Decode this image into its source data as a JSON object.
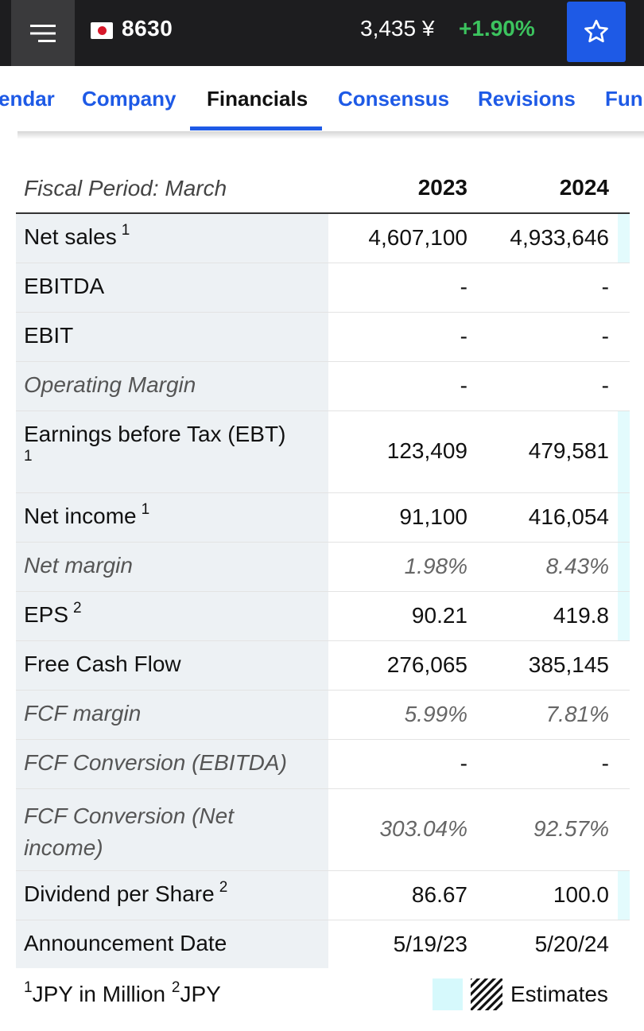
{
  "header": {
    "ticker": "8630",
    "price": "3,435 ¥",
    "change": "+1.90%",
    "colors": {
      "bar": "#1d1d1f",
      "positive": "#3cc35e",
      "accent": "#1e5ae6"
    }
  },
  "tabs": [
    {
      "label": "Calendar",
      "visible_label": "endar"
    },
    {
      "label": "Company"
    },
    {
      "label": "Financials",
      "active": true
    },
    {
      "label": "Consensus"
    },
    {
      "label": "Revisions"
    },
    {
      "label": "Fundamentals",
      "visible_label": "Fun"
    }
  ],
  "table": {
    "period_label": "Fiscal Period: March",
    "years": [
      "2023",
      "2024"
    ],
    "rows": [
      {
        "label": "Net sales",
        "note": "1",
        "v2023": "4,607,100",
        "v2024": "4,933,646"
      },
      {
        "label": "EBITDA",
        "v2023": "-",
        "v2024": "-"
      },
      {
        "label": "EBIT",
        "v2023": "-",
        "v2024": "-"
      },
      {
        "label": "Operating Margin",
        "v2023": "-",
        "v2024": "-"
      },
      {
        "label": "Earnings before Tax (EBT)",
        "note": "1",
        "v2023": "123,409",
        "v2024": "479,581"
      },
      {
        "label": "Net income",
        "note": "1",
        "v2023": "91,100",
        "v2024": "416,054"
      },
      {
        "label": "Net margin",
        "v2023": "1.98%",
        "v2024": "8.43%"
      },
      {
        "label": "EPS",
        "note": "2",
        "v2023": "90.21",
        "v2024": "419.8"
      },
      {
        "label": "Free Cash Flow",
        "v2023": "276,065",
        "v2024": "385,145"
      },
      {
        "label": "FCF margin",
        "v2023": "5.99%",
        "v2024": "7.81%"
      },
      {
        "label": "FCF Conversion (EBITDA)",
        "v2023": "-",
        "v2024": "-"
      },
      {
        "label": "FCF Conversion (Net income)",
        "v2023": "303.04%",
        "v2024": "92.57%"
      },
      {
        "label": "Dividend per Share",
        "note": "2",
        "v2023": "86.67",
        "v2024": "100.0"
      },
      {
        "label": "Announcement Date",
        "v2023": "5/19/23",
        "v2024": "5/20/24"
      }
    ]
  },
  "footer": {
    "note1_mark": "1",
    "note1_text": "JPY in Million",
    "note2_mark": "2",
    "note2_text": "JPY",
    "legend_label": "Estimates",
    "estimate_color": "#e3fbfd"
  }
}
